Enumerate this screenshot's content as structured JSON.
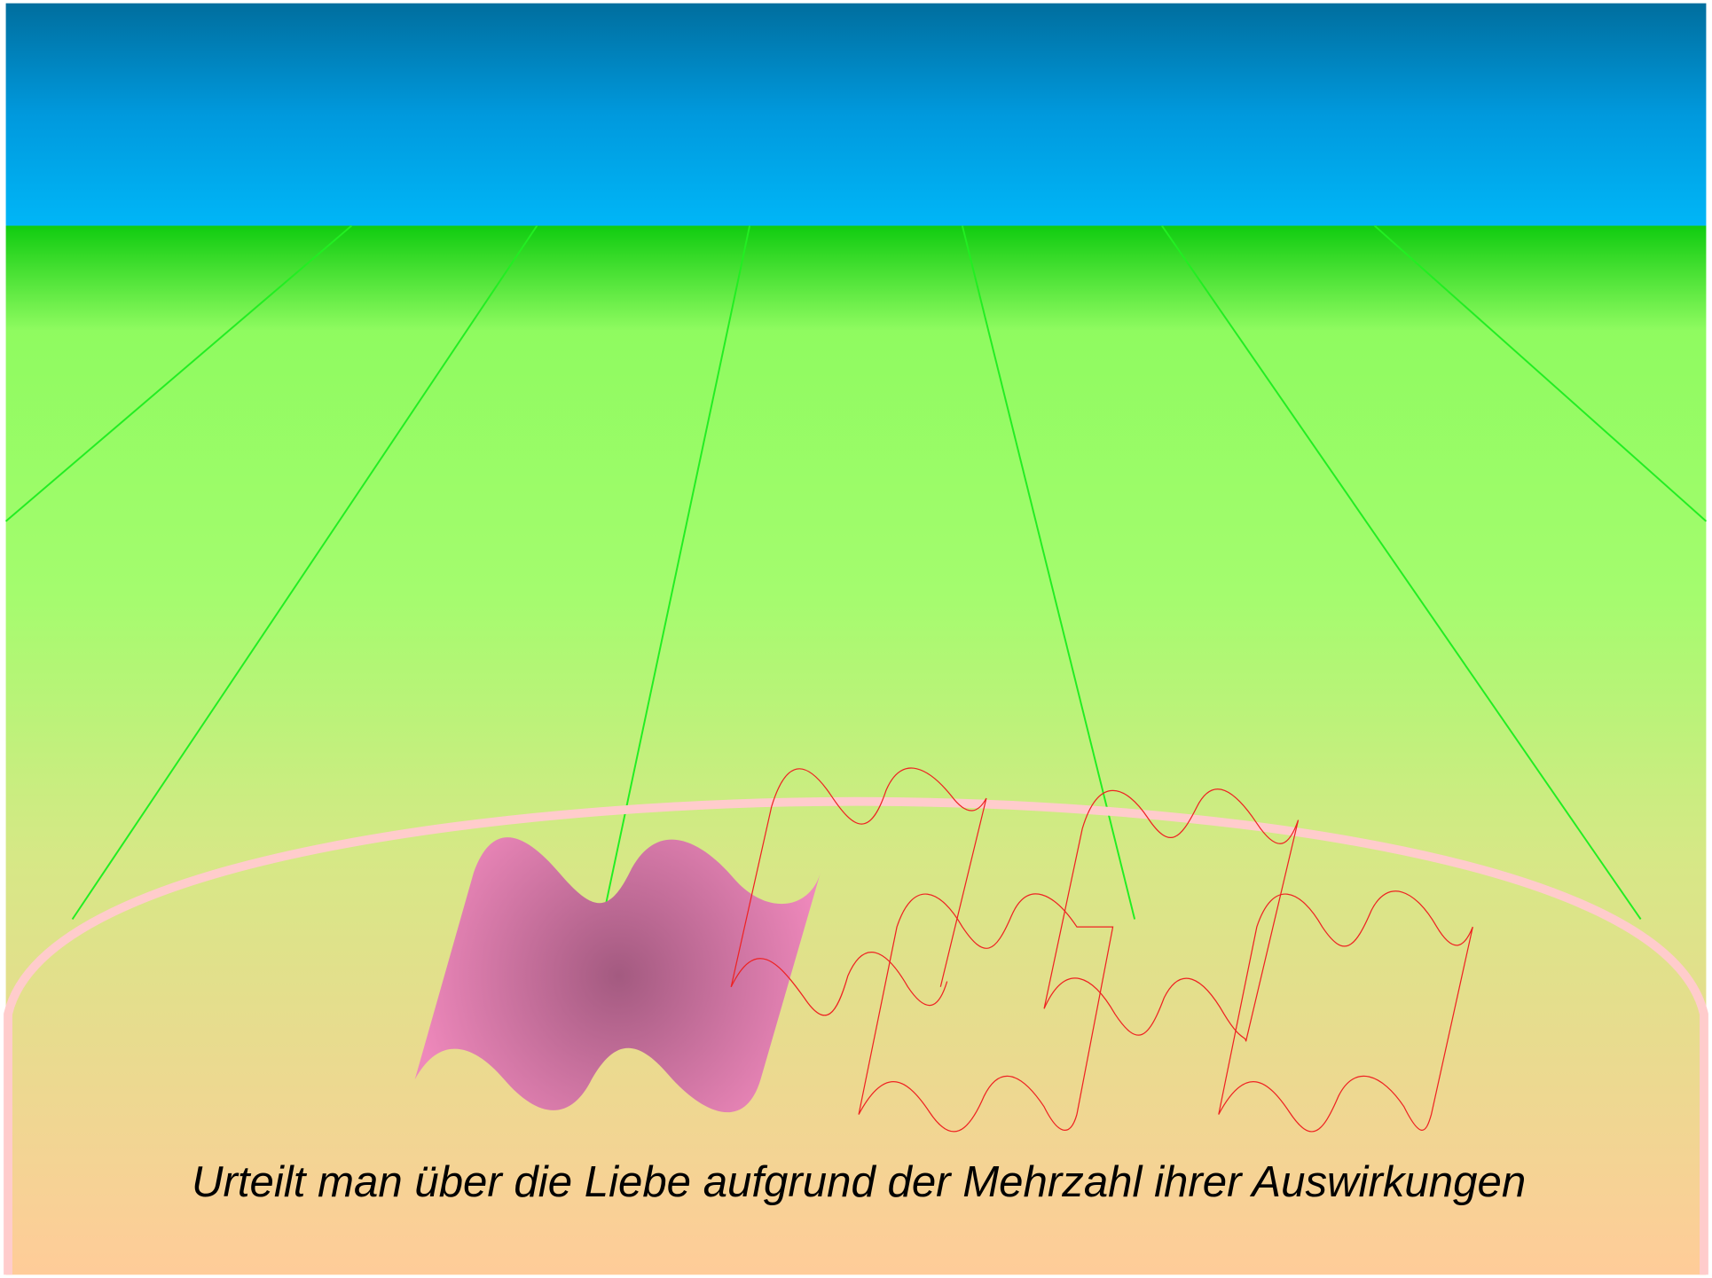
{
  "caption": "Urteilt man über die Liebe aufgrund der Mehrzahl ihrer Auswirkungen"
}
